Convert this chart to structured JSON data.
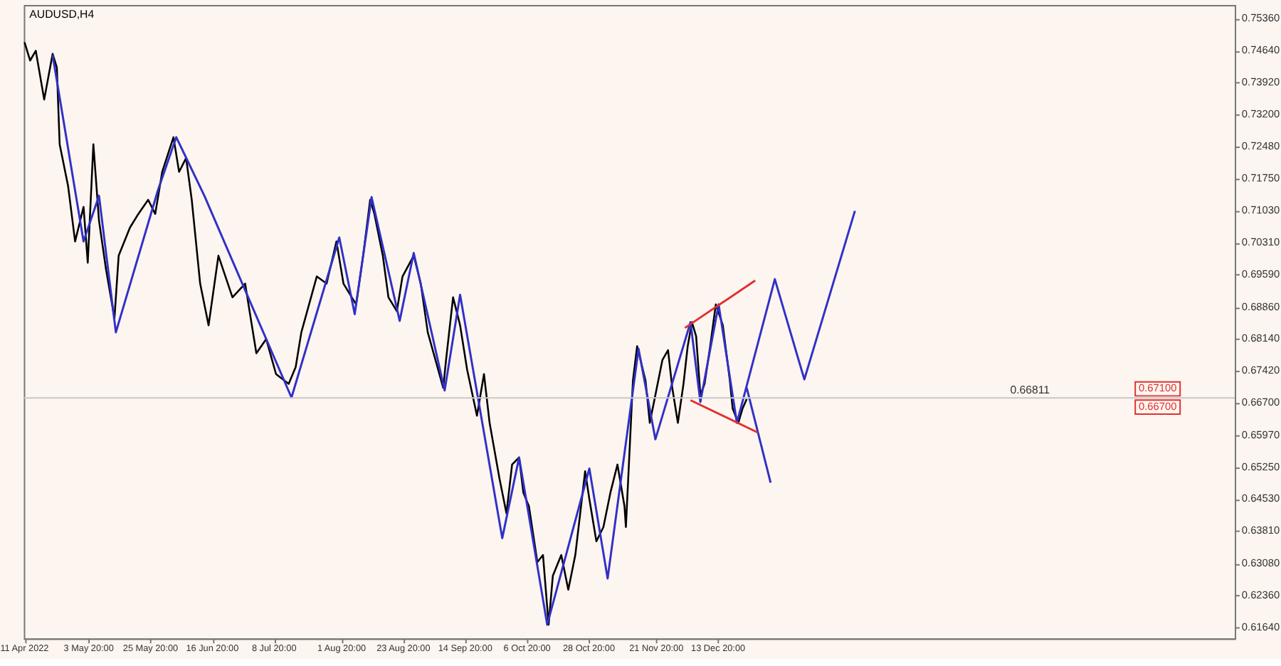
{
  "chart_data": {
    "type": "line",
    "title": "AUDUSD,H4",
    "xlim": [
      "2022-04-10T18:00",
      "2023-06-15T16:00"
    ],
    "ylim": [
      0.6139,
      0.7567
    ],
    "xticks": [
      {
        "value": "2022-04-11",
        "label": "11 Apr 2022"
      },
      {
        "value": "2022-05-03T20:00",
        "label": "3 May 20:00"
      },
      {
        "value": "2022-05-25T20:00",
        "label": "25 May 20:00"
      },
      {
        "value": "2022-06-16T20:00",
        "label": "16 Jun 20:00"
      },
      {
        "value": "2022-07-08T20:00",
        "label": "8 Jul 20:00"
      },
      {
        "value": "2022-08-01T20:00",
        "label": "1 Aug 20:00"
      },
      {
        "value": "2022-08-23T20:00",
        "label": "23 Aug 20:00"
      },
      {
        "value": "2022-09-14T20:00",
        "label": "14 Sep 20:00"
      },
      {
        "value": "2022-10-06T20:00",
        "label": "6 Oct 20:00"
      },
      {
        "value": "2022-10-28T20:00",
        "label": "28 Oct 20:00"
      },
      {
        "value": "2022-11-21T20:00",
        "label": "21 Nov 20:00"
      },
      {
        "value": "2022-12-13T20:00",
        "label": "13 Dec 20:00"
      }
    ],
    "yticks": [
      {
        "value": 0.7536,
        "label": "0.75360"
      },
      {
        "value": 0.7464,
        "label": "0.74640"
      },
      {
        "value": 0.7392,
        "label": "0.73920"
      },
      {
        "value": 0.732,
        "label": "0.73200"
      },
      {
        "value": 0.7248,
        "label": "0.72480"
      },
      {
        "value": 0.7175,
        "label": "0.71750"
      },
      {
        "value": 0.7103,
        "label": "0.71030"
      },
      {
        "value": 0.7031,
        "label": "0.70310"
      },
      {
        "value": 0.6959,
        "label": "0.69590"
      },
      {
        "value": 0.6886,
        "label": "0.68860"
      },
      {
        "value": 0.6814,
        "label": "0.68140"
      },
      {
        "value": 0.6742,
        "label": "0.67420"
      },
      {
        "value": 0.667,
        "label": "0.66700"
      },
      {
        "value": 0.6597,
        "label": "0.65970"
      },
      {
        "value": 0.6525,
        "label": "0.65250"
      },
      {
        "value": 0.6453,
        "label": "0.64530"
      },
      {
        "value": 0.6381,
        "label": "0.63810"
      },
      {
        "value": 0.6308,
        "label": "0.63080"
      },
      {
        "value": 0.6236,
        "label": "0.62360"
      },
      {
        "value": 0.6164,
        "label": "0.61640"
      }
    ],
    "grid": false,
    "marker": "none",
    "line_style": "solid",
    "series": [
      {
        "color": "#000000",
        "x": [
          "2022-04-11T00:00",
          "2022-04-13T00:00",
          "2022-04-15T00:00",
          "2022-04-18T00:00",
          "2022-04-21T00:00",
          "2022-04-22T12:00",
          "2022-04-23T12:00",
          "2022-04-26T12:00",
          "2022-04-29T00:00",
          "2022-05-02T00:00",
          "2022-05-03T12:00",
          "2022-05-05T12:00",
          "2022-05-07T12:00",
          "2022-05-10T00:00",
          "2022-05-13T00:00",
          "2022-05-14T12:00",
          "2022-05-18T12:00",
          "2022-05-21T12:00",
          "2022-05-25T00:00",
          "2022-05-27T12:00",
          "2022-05-30T00:00",
          "2022-06-03T00:00",
          "2022-06-05T00:00",
          "2022-06-07T12:00",
          "2022-06-09T12:00",
          "2022-06-12T12:00",
          "2022-06-15T12:00",
          "2022-06-19T00:00",
          "2022-06-24T00:00",
          "2022-06-28T12:00",
          "2022-07-02T12:00",
          "2022-07-06T00:00",
          "2022-07-09T12:00",
          "2022-07-14T00:00",
          "2022-07-16T12:00",
          "2022-07-18T12:00",
          "2022-07-24T00:00",
          "2022-07-27T12:00",
          "2022-07-31T00:00",
          "2022-08-02T12:00",
          "2022-08-07T00:00",
          "2022-08-09T12:00",
          "2022-08-12T00:00",
          "2022-08-13T12:00",
          "2022-08-16T12:00",
          "2022-08-18T12:00",
          "2022-08-21T12:00",
          "2022-08-23T12:00",
          "2022-08-27T12:00",
          "2022-08-30T00:00",
          "2022-09-01T12:00",
          "2022-09-07T00:00",
          "2022-09-08T00:00",
          "2022-09-10T12:00",
          "2022-09-13T00:00",
          "2022-09-15T12:00",
          "2022-09-19T00:00",
          "2022-09-21T12:00",
          "2022-09-23T12:00",
          "2022-09-27T00:00",
          "2022-09-29T12:00",
          "2022-10-01T12:00",
          "2022-10-04T00:00",
          "2022-10-05T12:00",
          "2022-10-07T12:00",
          "2022-10-10T12:00",
          "2022-10-12T12:00",
          "2022-10-14T12:00",
          "2022-10-16T00:00",
          "2022-10-19T00:00",
          "2022-10-21T12:00",
          "2022-10-24T00:00",
          "2022-10-27T12:00",
          "2022-10-29T00:00",
          "2022-10-31T12:00",
          "2022-11-03T00:00",
          "2022-11-05T12:00",
          "2022-11-08T00:00",
          "2022-11-10T12:00",
          "2022-11-11T00:00",
          "2022-11-13T12:00",
          "2022-11-15T00:00",
          "2022-11-18T00:00",
          "2022-11-19T12:00",
          "2022-11-21T12:00",
          "2022-11-24T00:00",
          "2022-11-26T00:00",
          "2022-11-27T12:00",
          "2022-11-29T12:00",
          "2022-12-01T12:00",
          "2022-12-03T00:00",
          "2022-12-04T12:00",
          "2022-12-06T00:00",
          "2022-12-07T12:00",
          "2022-12-09T00:00",
          "2022-12-11T00:00",
          "2022-12-13T00:00",
          "2022-12-15T12:00",
          "2022-12-18T00:00",
          "2022-12-19T00:00",
          "2022-12-21T00:00",
          "2022-12-22T12:00",
          "2022-12-24T00:00"
        ],
        "values": [
          0.7483,
          0.7442,
          0.7464,
          0.7354,
          0.7457,
          0.7426,
          0.7253,
          0.7159,
          0.7034,
          0.7112,
          0.6986,
          0.7253,
          0.7081,
          0.6971,
          0.6861,
          0.7002,
          0.7065,
          0.7096,
          0.7128,
          0.7096,
          0.7191,
          0.7269,
          0.7191,
          0.7222,
          0.7128,
          0.6939,
          0.6845,
          0.7002,
          0.6908,
          0.6939,
          0.6782,
          0.6814,
          0.6735,
          0.6713,
          0.6751,
          0.6829,
          0.6955,
          0.6939,
          0.7034,
          0.6939,
          0.6892,
          0.7002,
          0.7128,
          0.7096,
          0.7002,
          0.6908,
          0.6877,
          0.6955,
          0.7002,
          0.6939,
          0.6829,
          0.6704,
          0.6767,
          0.6908,
          0.6845,
          0.6745,
          0.6641,
          0.6735,
          0.6625,
          0.65,
          0.6421,
          0.6531,
          0.6547,
          0.6468,
          0.6437,
          0.6311,
          0.6327,
          0.617,
          0.628,
          0.6327,
          0.6249,
          0.6327,
          0.6516,
          0.6453,
          0.6358,
          0.639,
          0.6468,
          0.6531,
          0.6437,
          0.639,
          0.672,
          0.6798,
          0.672,
          0.6625,
          0.6688,
          0.6767,
          0.6789,
          0.6704,
          0.6625,
          0.6713,
          0.6798,
          0.6852,
          0.682,
          0.6688,
          0.6713,
          0.6798,
          0.6892,
          0.6845,
          0.672,
          0.6657,
          0.6625,
          0.6657,
          0.6679
        ]
      },
      {
        "color": "#3030c8",
        "x": [
          "2022-04-21T00:00",
          "2022-05-02T00:00",
          "2022-05-07T12:00",
          "2022-05-13T12:00",
          "2022-05-28T12:00",
          "2022-06-04T00:00",
          "2022-06-14T00:00",
          "2022-07-15T00:00",
          "2022-08-01T00:00",
          "2022-08-06T12:00",
          "2022-08-12T12:00",
          "2022-08-22T12:00",
          "2022-08-27T12:00",
          "2022-09-07T12:00",
          "2022-09-13T00:00",
          "2022-09-28T00:00",
          "2022-10-04T00:00",
          "2022-10-14T00:00",
          "2022-10-29T00:00",
          "2022-11-04T12:00",
          "2022-11-15T12:00",
          "2022-11-21T12:00",
          "2022-12-04T00:00",
          "2022-12-07T12:00",
          "2022-12-14T00:00",
          "2022-12-20T12:00",
          "2023-01-03T00:00",
          "2023-01-13T12:00",
          "2023-01-31T12:00"
        ],
        "values": [
          0.7454,
          0.7034,
          0.7137,
          0.6829,
          0.715,
          0.7269,
          0.7137,
          0.6682,
          0.7043,
          0.687,
          0.7134,
          0.6855,
          0.7008,
          0.6698,
          0.6914,
          0.6365,
          0.6547,
          0.617,
          0.6522,
          0.6274,
          0.6792,
          0.6588,
          0.6852,
          0.6672,
          0.6892,
          0.6625,
          0.6949,
          0.6723,
          0.7103
        ]
      },
      {
        "color": "#3030c8",
        "x": [
          "2022-12-24T00:00",
          "2023-01-01T12:00"
        ],
        "values": [
          0.6704,
          0.649
        ]
      },
      {
        "color": "#e03030",
        "x": [
          "2022-12-02T00:00",
          "2022-12-27T00:00"
        ],
        "values": [
          0.6839,
          0.6946
        ]
      },
      {
        "color": "#e03030",
        "x": [
          "2022-12-04T00:00",
          "2022-12-28T00:00"
        ],
        "values": [
          0.6676,
          0.6603
        ]
      }
    ],
    "ref_lines": [
      {
        "axis": "y",
        "value": 0.66811,
        "label": "0.66811",
        "color": "#c8c8c8",
        "line_style": "solid"
      }
    ],
    "annotations": [
      "0.67100",
      "0.66700"
    ]
  }
}
